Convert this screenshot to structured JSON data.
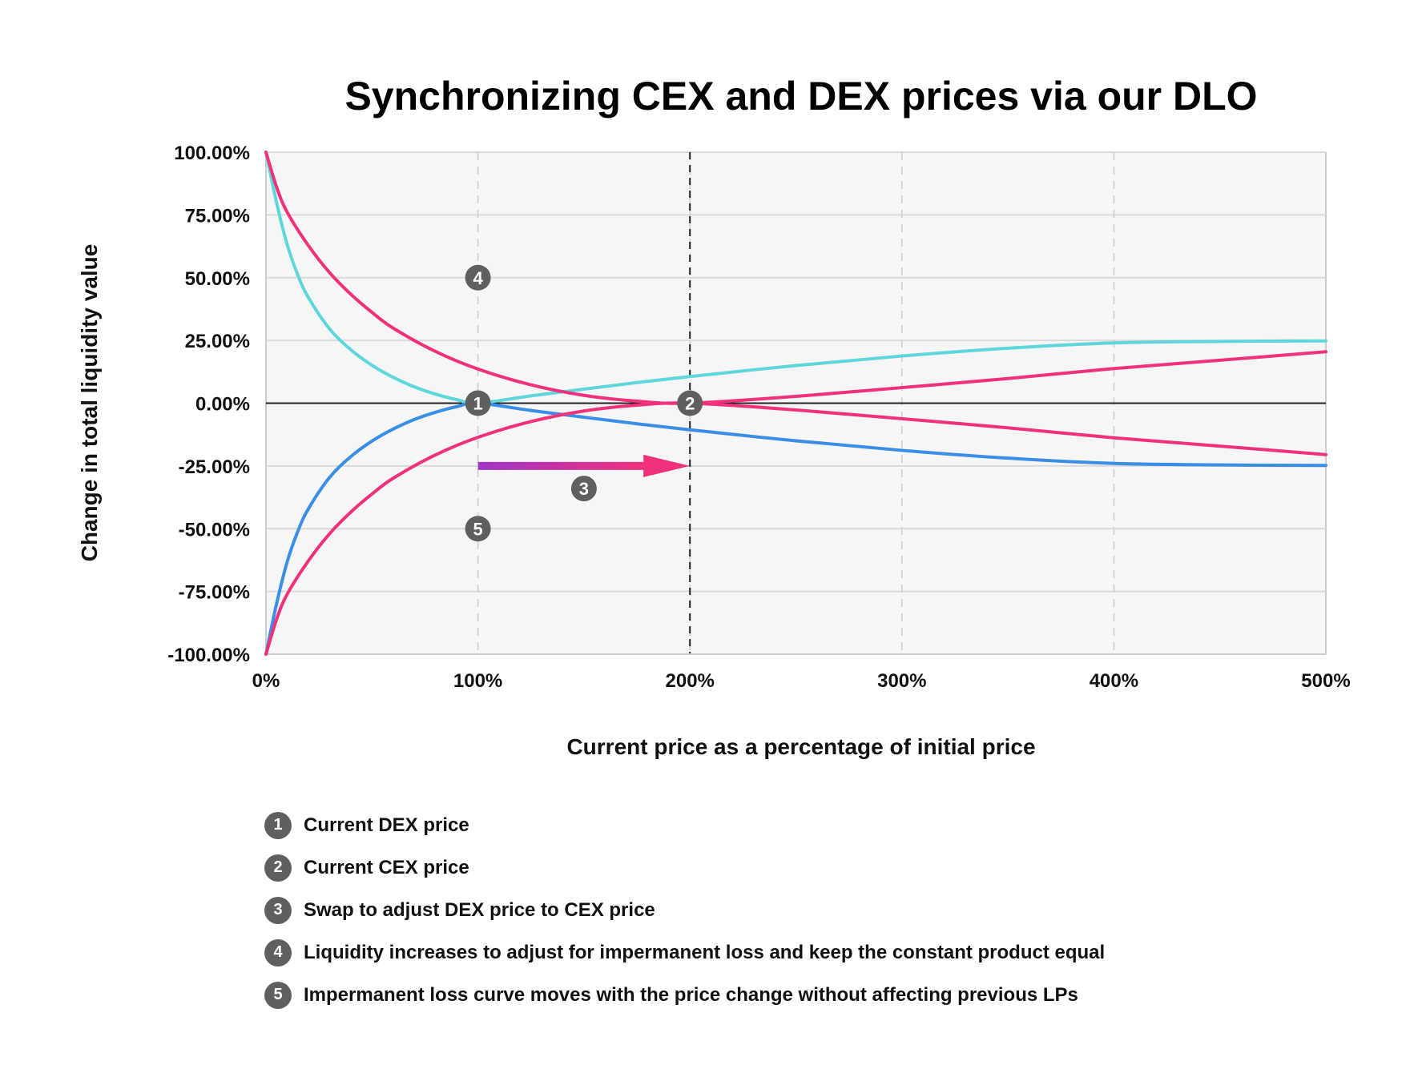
{
  "chart_data": {
    "type": "line",
    "title": "Synchronizing CEX and DEX prices via our DLO",
    "xlabel": "Current price as a percentage of initial price",
    "ylabel": "Change in total liquidity value",
    "xlim": [
      0,
      500
    ],
    "ylim": [
      -100,
      100
    ],
    "x_ticks": [
      "0%",
      "100%",
      "200%",
      "300%",
      "400%",
      "500%"
    ],
    "x_tick_values": [
      0,
      100,
      200,
      300,
      400,
      500
    ],
    "y_ticks": [
      "100.00%",
      "75.00%",
      "50.00%",
      "25.00%",
      "0.00%",
      "-25.00%",
      "-50.00%",
      "-75.00%",
      "-100.00%"
    ],
    "y_tick_values": [
      100,
      75,
      50,
      25,
      0,
      -25,
      -50,
      -75,
      -100
    ],
    "grid": true,
    "x_unit": "%",
    "y_unit": "%",
    "series": [
      {
        "color": "#5fd6dc",
        "x": [
          0,
          5,
          10,
          15,
          20,
          30,
          40,
          50,
          60,
          70,
          80,
          90,
          100,
          125,
          150,
          175,
          200,
          250,
          300,
          350,
          400,
          450,
          500
        ],
        "y": [
          100,
          79.9,
          63.2,
          51.1,
          42.1,
          29.6,
          21.3,
          15.1,
          10.3,
          6.5,
          3.6,
          1.4,
          0,
          2.9,
          5.6,
          8.2,
          10.6,
          15.0,
          18.8,
          21.9,
          24.0,
          24.6,
          24.8
        ]
      },
      {
        "color": "#3a8ee6",
        "x": [
          0,
          5,
          10,
          15,
          20,
          30,
          40,
          50,
          60,
          70,
          80,
          90,
          100,
          125,
          150,
          175,
          200,
          250,
          300,
          350,
          400,
          450,
          500
        ],
        "y": [
          -100,
          -79.9,
          -63.2,
          -51.1,
          -42.1,
          -29.6,
          -21.3,
          -15.1,
          -10.3,
          -6.5,
          -3.6,
          -1.4,
          0,
          -2.9,
          -5.6,
          -8.2,
          -10.6,
          -15.0,
          -18.8,
          -21.9,
          -24.0,
          -24.6,
          -24.8
        ]
      },
      {
        "color": "#f0327a",
        "x": [
          0,
          5,
          10,
          20,
          30,
          40,
          50,
          60,
          80,
          100,
          125,
          150,
          175,
          200,
          250,
          300,
          350,
          400,
          450,
          500
        ],
        "y": [
          100,
          86.1,
          76.1,
          62.8,
          52.0,
          43.4,
          36.2,
          29.9,
          20.6,
          13.6,
          7.3,
          3.1,
          0.8,
          0,
          2.7,
          6.2,
          9.8,
          13.8,
          17.1,
          20.5
        ]
      },
      {
        "color": "#f0327a",
        "x": [
          0,
          5,
          10,
          20,
          30,
          40,
          50,
          60,
          80,
          100,
          125,
          150,
          175,
          200,
          250,
          300,
          350,
          400,
          450,
          500
        ],
        "y": [
          -100,
          -86.1,
          -76.1,
          -62.8,
          -52.0,
          -43.4,
          -36.2,
          -29.9,
          -20.6,
          -13.6,
          -7.3,
          -3.1,
          -0.8,
          0,
          -2.7,
          -6.2,
          -9.8,
          -13.8,
          -17.1,
          -20.5
        ]
      }
    ],
    "reference_lines": [
      {
        "x": 200,
        "style": "dashed"
      }
    ],
    "arrow": {
      "from": [
        100,
        -25
      ],
      "to": [
        200,
        -25
      ],
      "colors": [
        "#a034c8",
        "#f0327a"
      ]
    },
    "markers": [
      {
        "label": "1",
        "x": 100,
        "y": 0
      },
      {
        "label": "2",
        "x": 200,
        "y": 0
      },
      {
        "label": "3",
        "x": 150,
        "y": -34
      },
      {
        "label": "4",
        "x": 100,
        "y": 50
      },
      {
        "label": "5",
        "x": 100,
        "y": -50
      }
    ]
  },
  "legend": [
    {
      "num": "1",
      "text": "Current DEX price"
    },
    {
      "num": "2",
      "text": "Current CEX price"
    },
    {
      "num": "3",
      "text": "Swap to adjust DEX price to CEX price"
    },
    {
      "num": "4",
      "text": "Liquidity increases to adjust for impermanent loss and keep the constant product equal"
    },
    {
      "num": "5",
      "text": "Impermanent loss curve moves with the price change without affecting previous LPs"
    }
  ]
}
